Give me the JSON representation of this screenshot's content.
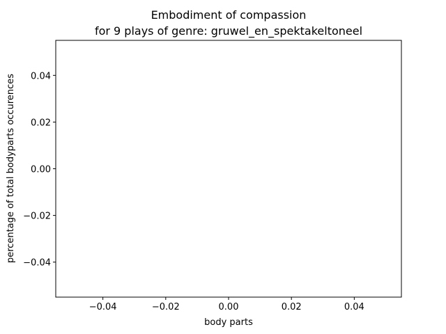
{
  "chart_data": {
    "type": "bar",
    "title_line1": "Embodiment of compassion",
    "title_line2": "for 9 plays of genre: gruwel_en_spektakeltoneel",
    "xlabel": "body parts",
    "ylabel": "percentage of total bodyparts occurences",
    "xlim": [
      -0.055,
      0.055
    ],
    "ylim": [
      -0.055,
      0.055
    ],
    "xticks": [
      -0.04,
      -0.02,
      0.0,
      0.02,
      0.04
    ],
    "xtick_labels": [
      "−0.04",
      "−0.02",
      "0.00",
      "0.02",
      "0.04"
    ],
    "yticks": [
      -0.04,
      -0.02,
      0.0,
      0.02,
      0.04
    ],
    "ytick_labels": [
      "−0.04",
      "−0.02",
      "0.00",
      "0.02",
      "0.04"
    ],
    "categories": [],
    "values": [],
    "grid": false,
    "legend": "none"
  }
}
